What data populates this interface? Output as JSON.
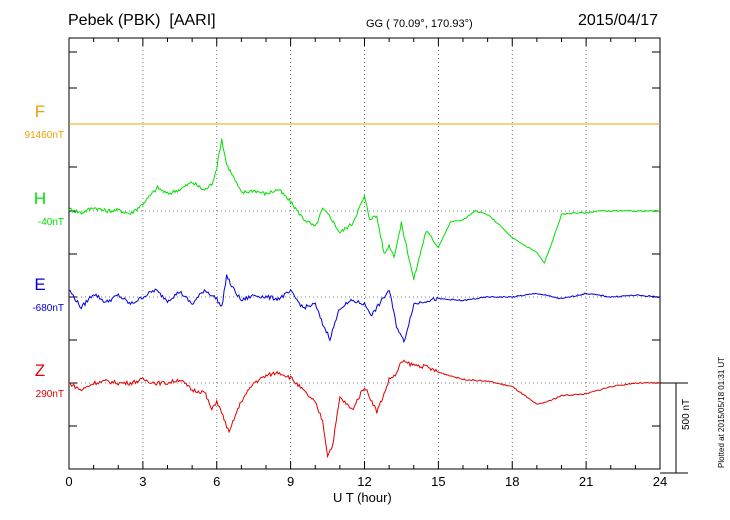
{
  "header": {
    "station": "Pebek (PBK)",
    "org": "[AARI]",
    "coords": "GG ( 70.09°, 170.93°)",
    "date": "2015/04/17"
  },
  "footer": {
    "plotted": "Plotted at 2015/05/18 01:31  UT",
    "scale_label": "500 nT"
  },
  "chart_data": {
    "type": "line",
    "xlabel": "U T (hour)",
    "xticks": [
      0,
      3,
      6,
      9,
      12,
      15,
      18,
      21,
      24
    ],
    "xlim": [
      0,
      24
    ],
    "scale_bar_nT": 500,
    "grid": true,
    "series": [
      {
        "name": "F",
        "baseline_label": "91460nT",
        "color": "#f0a000",
        "x": [
          0,
          24
        ],
        "values": [
          0,
          0
        ]
      },
      {
        "name": "H",
        "baseline_label": "-40nT",
        "color": "#00e000",
        "x": [
          0,
          0.5,
          1,
          1.5,
          2,
          2.5,
          3,
          3.3,
          3.6,
          4,
          4.5,
          5,
          5.5,
          5.8,
          6,
          6.2,
          6.4,
          6.6,
          7,
          7.5,
          8,
          8.5,
          9,
          9.5,
          10,
          10.3,
          10.6,
          11,
          11.5,
          12,
          12.2,
          12.5,
          12.8,
          13,
          13.2,
          13.5,
          14,
          14.5,
          15,
          15.5,
          16,
          16.5,
          17,
          17.5,
          18,
          18.5,
          19,
          19.3,
          19.6,
          20,
          20.5,
          21,
          21.5,
          22,
          23,
          24
        ],
        "values": [
          10,
          -10,
          20,
          0,
          5,
          -15,
          40,
          85,
          130,
          95,
          120,
          160,
          115,
          150,
          240,
          400,
          260,
          210,
          100,
          115,
          95,
          120,
          50,
          -40,
          -90,
          10,
          -30,
          -120,
          -70,
          80,
          -40,
          -30,
          -240,
          -190,
          -250,
          -70,
          -380,
          -110,
          -200,
          -60,
          -50,
          0,
          -20,
          -80,
          -150,
          -190,
          -230,
          -290,
          -180,
          -20,
          -10,
          -10,
          0,
          0,
          0,
          0
        ]
      },
      {
        "name": "E",
        "baseline_label": "-680nT",
        "color": "#0000e0",
        "x": [
          0,
          0.5,
          1,
          1.5,
          2,
          2.5,
          3,
          3.5,
          4,
          4.5,
          5,
          5.5,
          6,
          6.2,
          6.4,
          6.6,
          7,
          7.5,
          8,
          8.5,
          9,
          9.5,
          10,
          10.3,
          10.6,
          11,
          11.5,
          12,
          12.3,
          12.6,
          13,
          13.3,
          13.6,
          14,
          14.5,
          15,
          16,
          17,
          18,
          19,
          20,
          21,
          22,
          23,
          24
        ],
        "values": [
          40,
          -60,
          20,
          -30,
          10,
          -40,
          0,
          40,
          -20,
          30,
          -40,
          40,
          -10,
          -60,
          120,
          60,
          -20,
          10,
          0,
          -10,
          30,
          -60,
          -40,
          -150,
          -230,
          -60,
          -20,
          -40,
          -100,
          -40,
          40,
          -160,
          -250,
          -40,
          -20,
          -10,
          -20,
          0,
          0,
          20,
          -10,
          20,
          0,
          10,
          0
        ]
      },
      {
        "name": "Z",
        "baseline_label": "290nT",
        "color": "#e00000",
        "x": [
          0,
          0.5,
          1,
          1.5,
          2,
          2.5,
          3,
          3.5,
          4,
          4.5,
          5,
          5.5,
          5.8,
          6,
          6.3,
          6.5,
          6.7,
          7,
          7.5,
          8,
          8.5,
          9,
          9.5,
          10,
          10.3,
          10.5,
          10.7,
          11,
          11.5,
          12,
          12.3,
          12.5,
          12.8,
          13,
          13.3,
          13.5,
          14,
          14.5,
          15,
          16,
          17,
          18,
          19,
          19.5,
          20,
          21,
          22,
          23,
          24
        ],
        "values": [
          0,
          -40,
          0,
          10,
          0,
          0,
          20,
          0,
          0,
          20,
          -40,
          -50,
          -150,
          -100,
          -200,
          -280,
          -200,
          -100,
          0,
          40,
          60,
          30,
          -40,
          -110,
          -210,
          -400,
          -350,
          -80,
          -150,
          -20,
          -100,
          -160,
          -60,
          20,
          50,
          120,
          100,
          90,
          60,
          20,
          10,
          -20,
          -120,
          -100,
          -70,
          -60,
          -20,
          0,
          0
        ]
      }
    ]
  }
}
